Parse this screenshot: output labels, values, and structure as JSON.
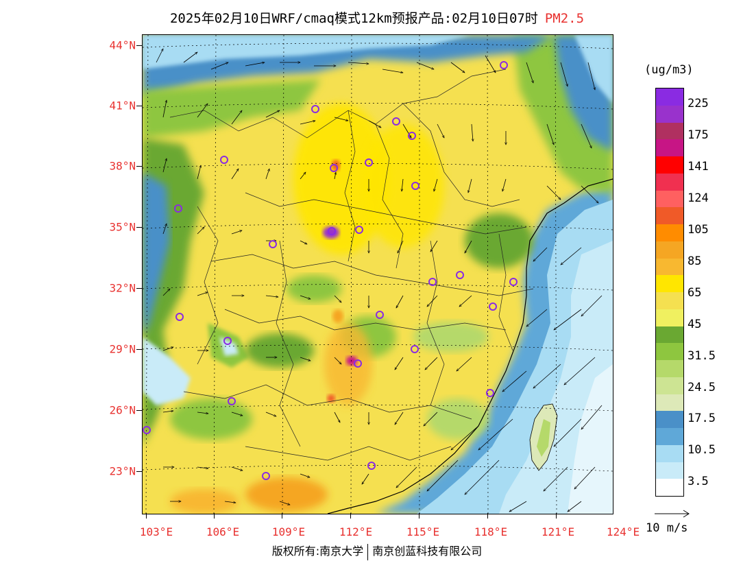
{
  "title": {
    "main": "2025年02月10日WRF/cmaq模式12km预报产品:02月10日07时",
    "pollutant": "PM2.5",
    "pollutant_color": "#e8312f"
  },
  "axes": {
    "lat_labels": [
      "44°N",
      "41°N",
      "38°N",
      "35°N",
      "32°N",
      "29°N",
      "26°N",
      "23°N"
    ],
    "lon_labels": [
      "103°E",
      "106°E",
      "109°E",
      "112°E",
      "115°E",
      "118°E",
      "121°E",
      "124°E"
    ]
  },
  "legend": {
    "unit": "(ug/m3)",
    "labels": [
      "225",
      "175",
      "141",
      "124",
      "105",
      "85",
      "65",
      "45",
      "31.5",
      "24.5",
      "17.5",
      "10.5",
      "3.5"
    ],
    "colors": [
      "#8a2be2",
      "#9932cc",
      "#b03060",
      "#c71585",
      "#ff0000",
      "#f03050",
      "#ff6060",
      "#f05a28",
      "#ff8c00",
      "#f5a623",
      "#f8b830",
      "#ffe600",
      "#f5e050",
      "#f0f060",
      "#6aa832",
      "#8ec63f",
      "#b5d96a",
      "#cde493",
      "#dde9b8",
      "#4a90c8",
      "#5fa8d8",
      "#a8dcf3",
      "#c9ebf8",
      "#ffffff"
    ]
  },
  "wind_reference": {
    "label": "10 m/s"
  },
  "footer": {
    "left": "版权所有:南京大学",
    "right": "南京创蓝科技有限公司"
  },
  "cities": [
    {
      "name": "c1"
    },
    {
      "name": "c2"
    },
    {
      "name": "c3"
    },
    {
      "name": "c4"
    },
    {
      "name": "c5"
    },
    {
      "name": "c6"
    },
    {
      "name": "c7"
    },
    {
      "name": "c8"
    },
    {
      "name": "c9"
    },
    {
      "name": "c10"
    },
    {
      "name": "c11"
    },
    {
      "name": "c12"
    },
    {
      "name": "c13"
    },
    {
      "name": "c14"
    },
    {
      "name": "c15"
    },
    {
      "name": "c16"
    },
    {
      "name": "c17"
    },
    {
      "name": "c18"
    },
    {
      "name": "c19"
    },
    {
      "name": "c20"
    },
    {
      "name": "c21"
    },
    {
      "name": "c22"
    },
    {
      "name": "c23"
    },
    {
      "name": "c24"
    }
  ]
}
